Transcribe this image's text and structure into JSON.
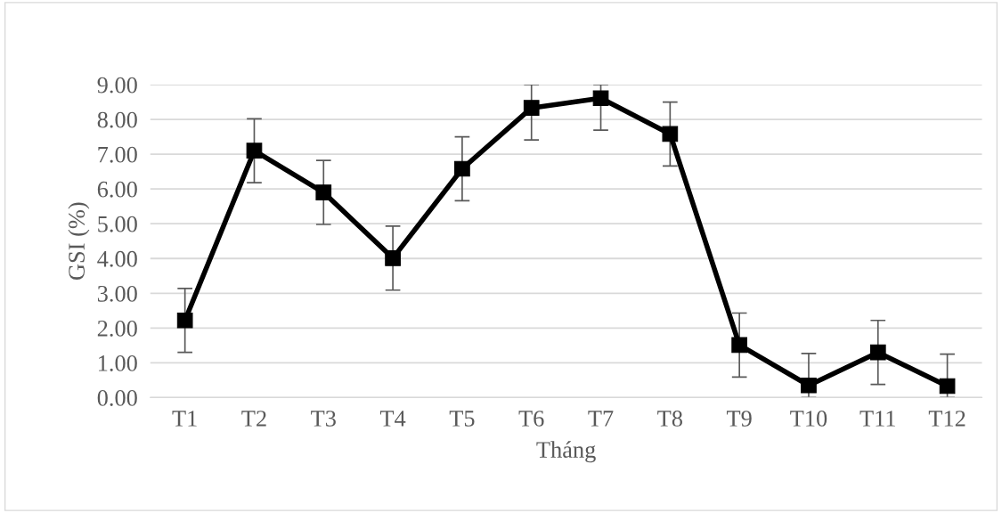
{
  "chart_data": {
    "type": "line",
    "xlabel": "Tháng",
    "ylabel": "GSI (%)",
    "categories": [
      "T1",
      "T2",
      "T3",
      "T4",
      "T5",
      "T6",
      "T7",
      "T8",
      "T9",
      "T10",
      "T11",
      "T12"
    ],
    "series": [
      {
        "color": "#000000",
        "values": [
          2.22,
          7.1,
          5.9,
          4.01,
          6.58,
          8.33,
          8.61,
          7.58,
          1.51,
          0.35,
          1.3,
          0.33
        ],
        "errors": [
          [
            1.3,
            3.14
          ],
          [
            6.18,
            8.02
          ],
          [
            4.98,
            6.82
          ],
          [
            3.09,
            4.93
          ],
          [
            5.66,
            7.5
          ],
          [
            7.41,
            9.0
          ],
          [
            7.69,
            9.0
          ],
          [
            6.66,
            8.5
          ],
          [
            0.59,
            2.43
          ],
          [
            0,
            1.27
          ],
          [
            0.38,
            2.22
          ],
          [
            0,
            1.25
          ]
        ]
      }
    ],
    "ylim": [
      0,
      9
    ],
    "yticks": [
      {
        "value": 0,
        "label": "0.00"
      },
      {
        "value": 1,
        "label": "1.00"
      },
      {
        "value": 2,
        "label": "2.00"
      },
      {
        "value": 3,
        "label": "3.00"
      },
      {
        "value": 4,
        "label": "4.00"
      },
      {
        "value": 5,
        "label": "5.00"
      },
      {
        "value": 6,
        "label": "6.00"
      },
      {
        "value": 7,
        "label": "7.00"
      },
      {
        "value": 8,
        "label": "8.00"
      },
      {
        "value": 9,
        "label": "9.00"
      }
    ],
    "grid": "y",
    "marker": "square",
    "line_style": "solid"
  }
}
